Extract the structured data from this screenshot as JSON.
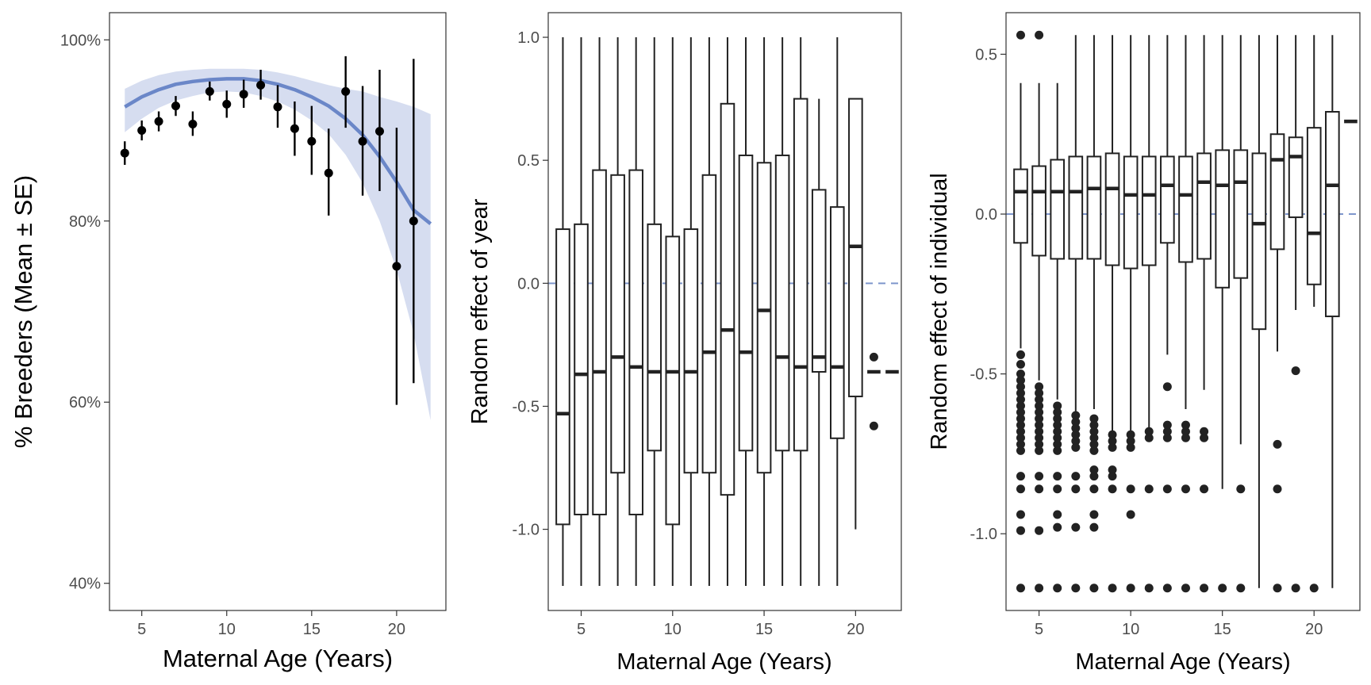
{
  "chart_data": [
    {
      "type": "scatter",
      "xlabel": "Maternal Age (Years)",
      "ylabel": "% Breeders (Mean ± SE)",
      "xlim": [
        3.1,
        22.9
      ],
      "ylim": [
        0.37,
        1.03
      ],
      "xticks": [
        5,
        10,
        15,
        20
      ],
      "xtick_labels": [
        "5",
        "10",
        "15",
        "20"
      ],
      "yticks": [
        0.4,
        0.6,
        0.8,
        1.0
      ],
      "ytick_labels": [
        "40%",
        "60%",
        "80%",
        "100%"
      ],
      "grid": false,
      "colors": {
        "points": "#000000",
        "fit_line": "#6b87c8",
        "ribbon": "#d6ddf0"
      },
      "points": [
        {
          "x": 4,
          "mean": 0.875,
          "lo": 0.862,
          "hi": 0.888
        },
        {
          "x": 5,
          "mean": 0.9,
          "lo": 0.889,
          "hi": 0.911
        },
        {
          "x": 6,
          "mean": 0.91,
          "lo": 0.899,
          "hi": 0.921
        },
        {
          "x": 7,
          "mean": 0.927,
          "lo": 0.916,
          "hi": 0.938
        },
        {
          "x": 8,
          "mean": 0.907,
          "lo": 0.894,
          "hi": 0.921
        },
        {
          "x": 9,
          "mean": 0.943,
          "lo": 0.933,
          "hi": 0.954
        },
        {
          "x": 10,
          "mean": 0.929,
          "lo": 0.914,
          "hi": 0.944
        },
        {
          "x": 11,
          "mean": 0.94,
          "lo": 0.925,
          "hi": 0.956
        },
        {
          "x": 12,
          "mean": 0.95,
          "lo": 0.934,
          "hi": 0.967
        },
        {
          "x": 13,
          "mean": 0.926,
          "lo": 0.903,
          "hi": 0.95
        },
        {
          "x": 14,
          "mean": 0.902,
          "lo": 0.872,
          "hi": 0.932
        },
        {
          "x": 15,
          "mean": 0.888,
          "lo": 0.851,
          "hi": 0.927
        },
        {
          "x": 16,
          "mean": 0.853,
          "lo": 0.806,
          "hi": 0.902
        },
        {
          "x": 17,
          "mean": 0.943,
          "lo": 0.903,
          "hi": 0.982
        },
        {
          "x": 18,
          "mean": 0.888,
          "lo": 0.828,
          "hi": 0.949
        },
        {
          "x": 19,
          "mean": 0.899,
          "lo": 0.833,
          "hi": 0.967
        },
        {
          "x": 20,
          "mean": 0.75,
          "lo": 0.597,
          "hi": 0.903
        },
        {
          "x": 21,
          "mean": 0.8,
          "lo": 0.621,
          "hi": 0.979
        }
      ],
      "fit": {
        "x": [
          4,
          5,
          6,
          7,
          8,
          9,
          10,
          11,
          12,
          13,
          14,
          15,
          16,
          17,
          18,
          19,
          20,
          21,
          22
        ],
        "y": [
          0.926,
          0.937,
          0.945,
          0.951,
          0.954,
          0.956,
          0.957,
          0.957,
          0.955,
          0.951,
          0.945,
          0.937,
          0.927,
          0.913,
          0.895,
          0.871,
          0.843,
          0.812,
          0.797
        ],
        "lo": [
          0.898,
          0.913,
          0.925,
          0.933,
          0.938,
          0.942,
          0.943,
          0.942,
          0.938,
          0.932,
          0.923,
          0.911,
          0.896,
          0.873,
          0.842,
          0.8,
          0.746,
          0.676,
          0.58
        ],
        "hi": [
          0.946,
          0.955,
          0.961,
          0.965,
          0.967,
          0.968,
          0.968,
          0.968,
          0.967,
          0.964,
          0.96,
          0.955,
          0.95,
          0.946,
          0.943,
          0.937,
          0.932,
          0.926,
          0.918
        ]
      }
    },
    {
      "type": "boxplot",
      "xlabel": "Maternal Age (Years)",
      "ylabel": "Random effect of year",
      "xlim": [
        3.2,
        22.5
      ],
      "ylim": [
        -1.33,
        1.1
      ],
      "xticks": [
        5,
        10,
        15,
        20
      ],
      "xtick_labels": [
        "5",
        "10",
        "15",
        "20"
      ],
      "yticks": [
        -1.0,
        -0.5,
        0.0,
        0.5,
        1.0
      ],
      "ytick_labels": [
        "-1.0",
        "-0.5",
        "0.0",
        "0.5",
        "1.0"
      ],
      "reference_line": {
        "y": 0,
        "style": "dashed",
        "color": "#7e96cc"
      },
      "grid": false,
      "boxes": [
        {
          "x": 4,
          "min": -1.23,
          "q1": -0.98,
          "median": -0.53,
          "q3": 0.22,
          "max": 1.0
        },
        {
          "x": 5,
          "min": -1.23,
          "q1": -0.94,
          "median": -0.37,
          "q3": 0.24,
          "max": 1.0
        },
        {
          "x": 6,
          "min": -1.23,
          "q1": -0.94,
          "median": -0.36,
          "q3": 0.46,
          "max": 1.0
        },
        {
          "x": 7,
          "min": -1.23,
          "q1": -0.77,
          "median": -0.3,
          "q3": 0.44,
          "max": 1.0
        },
        {
          "x": 8,
          "min": -1.23,
          "q1": -0.94,
          "median": -0.34,
          "q3": 0.46,
          "max": 1.0
        },
        {
          "x": 9,
          "min": -1.23,
          "q1": -0.68,
          "median": -0.36,
          "q3": 0.24,
          "max": 1.0
        },
        {
          "x": 10,
          "min": -1.23,
          "q1": -0.98,
          "median": -0.36,
          "q3": 0.19,
          "max": 1.0
        },
        {
          "x": 11,
          "min": -1.23,
          "q1": -0.77,
          "median": -0.36,
          "q3": 0.22,
          "max": 1.0
        },
        {
          "x": 12,
          "min": -1.23,
          "q1": -0.77,
          "median": -0.28,
          "q3": 0.44,
          "max": 1.0
        },
        {
          "x": 13,
          "min": -1.23,
          "q1": -0.86,
          "median": -0.19,
          "q3": 0.73,
          "max": 1.0
        },
        {
          "x": 14,
          "min": -1.23,
          "q1": -0.68,
          "median": -0.28,
          "q3": 0.52,
          "max": 1.0
        },
        {
          "x": 15,
          "min": -1.23,
          "q1": -0.77,
          "median": -0.11,
          "q3": 0.49,
          "max": 1.0
        },
        {
          "x": 16,
          "min": -1.23,
          "q1": -0.68,
          "median": -0.3,
          "q3": 0.52,
          "max": 1.0
        },
        {
          "x": 17,
          "min": -1.23,
          "q1": -0.68,
          "median": -0.34,
          "q3": 0.75,
          "max": 1.0
        },
        {
          "x": 18,
          "min": -1.23,
          "q1": -0.36,
          "median": -0.3,
          "q3": 0.38,
          "max": 0.75
        },
        {
          "x": 19,
          "min": -1.23,
          "q1": -0.63,
          "median": -0.34,
          "q3": 0.31,
          "max": 1.0
        },
        {
          "x": 20,
          "min": -1.0,
          "q1": -0.46,
          "median": 0.15,
          "q3": 0.75,
          "max": 0.75
        },
        {
          "x": 21,
          "min": -0.36,
          "q1": -0.36,
          "median": -0.36,
          "q3": -0.36,
          "max": -0.36
        },
        {
          "x": 22,
          "min": -0.36,
          "q1": -0.36,
          "median": -0.36,
          "q3": -0.36,
          "max": -0.36
        }
      ],
      "outliers": [
        {
          "x": 21,
          "y": -0.3
        },
        {
          "x": 21,
          "y": -0.58
        }
      ]
    },
    {
      "type": "boxplot",
      "xlabel": "Maternal Age (Years)",
      "ylabel": "Random effect of individual",
      "xlim": [
        3.2,
        22.5
      ],
      "ylim": [
        -1.24,
        0.63
      ],
      "xticks": [
        5,
        10,
        15,
        20
      ],
      "xtick_labels": [
        "5",
        "10",
        "15",
        "20"
      ],
      "yticks": [
        -1.0,
        -0.5,
        0.0,
        0.5
      ],
      "ytick_labels": [
        "-1.0",
        "-0.5",
        "0.0",
        "0.5"
      ],
      "reference_line": {
        "y": 0,
        "style": "dashed",
        "color": "#7e96cc"
      },
      "grid": false,
      "boxes": [
        {
          "x": 4,
          "min": -0.42,
          "q1": -0.09,
          "median": 0.07,
          "q3": 0.14,
          "max": 0.41
        },
        {
          "x": 5,
          "min": -0.52,
          "q1": -0.13,
          "median": 0.07,
          "q3": 0.15,
          "max": 0.41
        },
        {
          "x": 6,
          "min": -0.58,
          "q1": -0.14,
          "median": 0.07,
          "q3": 0.17,
          "max": 0.41
        },
        {
          "x": 7,
          "min": -0.62,
          "q1": -0.14,
          "median": 0.07,
          "q3": 0.18,
          "max": 0.56
        },
        {
          "x": 8,
          "min": -0.61,
          "q1": -0.14,
          "median": 0.08,
          "q3": 0.18,
          "max": 0.56
        },
        {
          "x": 9,
          "min": -0.68,
          "q1": -0.16,
          "median": 0.08,
          "q3": 0.19,
          "max": 0.56
        },
        {
          "x": 10,
          "min": -0.68,
          "q1": -0.17,
          "median": 0.06,
          "q3": 0.18,
          "max": 0.56
        },
        {
          "x": 11,
          "min": -0.68,
          "q1": -0.16,
          "median": 0.06,
          "q3": 0.18,
          "max": 0.56
        },
        {
          "x": 12,
          "min": -0.44,
          "q1": -0.09,
          "median": 0.09,
          "q3": 0.18,
          "max": 0.56
        },
        {
          "x": 13,
          "min": -0.61,
          "q1": -0.15,
          "median": 0.06,
          "q3": 0.18,
          "max": 0.56
        },
        {
          "x": 14,
          "min": -0.55,
          "q1": -0.14,
          "median": 0.1,
          "q3": 0.19,
          "max": 0.56
        },
        {
          "x": 15,
          "min": -0.86,
          "q1": -0.23,
          "median": 0.09,
          "q3": 0.2,
          "max": 0.56
        },
        {
          "x": 16,
          "min": -0.72,
          "q1": -0.2,
          "median": 0.1,
          "q3": 0.2,
          "max": 0.56
        },
        {
          "x": 17,
          "min": -1.17,
          "q1": -0.36,
          "median": -0.03,
          "q3": 0.19,
          "max": 0.56
        },
        {
          "x": 18,
          "min": -0.43,
          "q1": -0.11,
          "median": 0.17,
          "q3": 0.25,
          "max": 0.56
        },
        {
          "x": 19,
          "min": -0.3,
          "q1": -0.01,
          "median": 0.18,
          "q3": 0.24,
          "max": 0.56
        },
        {
          "x": 20,
          "min": -0.29,
          "q1": -0.22,
          "median": -0.06,
          "q3": 0.27,
          "max": 0.56
        },
        {
          "x": 21,
          "min": -1.17,
          "q1": -0.32,
          "median": 0.09,
          "q3": 0.32,
          "max": 0.56
        },
        {
          "x": 22,
          "min": 0.29,
          "q1": 0.29,
          "median": 0.29,
          "q3": 0.29,
          "max": 0.29
        }
      ],
      "outliers": [
        {
          "x": 4,
          "y": 0.56
        },
        {
          "x": 5,
          "y": 0.56
        },
        {
          "x": 4,
          "y": -0.44
        },
        {
          "x": 4,
          "y": -0.47
        },
        {
          "x": 4,
          "y": -0.5
        },
        {
          "x": 4,
          "y": -0.52
        },
        {
          "x": 4,
          "y": -0.54
        },
        {
          "x": 4,
          "y": -0.56
        },
        {
          "x": 4,
          "y": -0.58
        },
        {
          "x": 4,
          "y": -0.6
        },
        {
          "x": 4,
          "y": -0.62
        },
        {
          "x": 4,
          "y": -0.64
        },
        {
          "x": 4,
          "y": -0.66
        },
        {
          "x": 4,
          "y": -0.68
        },
        {
          "x": 4,
          "y": -0.7
        },
        {
          "x": 4,
          "y": -0.72
        },
        {
          "x": 4,
          "y": -0.74
        },
        {
          "x": 4,
          "y": -0.82
        },
        {
          "x": 4,
          "y": -0.86
        },
        {
          "x": 4,
          "y": -0.94
        },
        {
          "x": 4,
          "y": -0.99
        },
        {
          "x": 4,
          "y": -1.17
        },
        {
          "x": 5,
          "y": -0.54
        },
        {
          "x": 5,
          "y": -0.56
        },
        {
          "x": 5,
          "y": -0.58
        },
        {
          "x": 5,
          "y": -0.6
        },
        {
          "x": 5,
          "y": -0.62
        },
        {
          "x": 5,
          "y": -0.64
        },
        {
          "x": 5,
          "y": -0.66
        },
        {
          "x": 5,
          "y": -0.68
        },
        {
          "x": 5,
          "y": -0.7
        },
        {
          "x": 5,
          "y": -0.72
        },
        {
          "x": 5,
          "y": -0.74
        },
        {
          "x": 5,
          "y": -0.82
        },
        {
          "x": 5,
          "y": -0.86
        },
        {
          "x": 5,
          "y": -0.99
        },
        {
          "x": 5,
          "y": -1.17
        },
        {
          "x": 6,
          "y": -0.6
        },
        {
          "x": 6,
          "y": -0.62
        },
        {
          "x": 6,
          "y": -0.64
        },
        {
          "x": 6,
          "y": -0.66
        },
        {
          "x": 6,
          "y": -0.68
        },
        {
          "x": 6,
          "y": -0.7
        },
        {
          "x": 6,
          "y": -0.72
        },
        {
          "x": 6,
          "y": -0.74
        },
        {
          "x": 6,
          "y": -0.82
        },
        {
          "x": 6,
          "y": -0.86
        },
        {
          "x": 6,
          "y": -0.94
        },
        {
          "x": 6,
          "y": -0.98
        },
        {
          "x": 6,
          "y": -1.17
        },
        {
          "x": 7,
          "y": -0.63
        },
        {
          "x": 7,
          "y": -0.65
        },
        {
          "x": 7,
          "y": -0.67
        },
        {
          "x": 7,
          "y": -0.69
        },
        {
          "x": 7,
          "y": -0.71
        },
        {
          "x": 7,
          "y": -0.73
        },
        {
          "x": 7,
          "y": -0.82
        },
        {
          "x": 7,
          "y": -0.86
        },
        {
          "x": 7,
          "y": -0.98
        },
        {
          "x": 7,
          "y": -1.17
        },
        {
          "x": 8,
          "y": -0.64
        },
        {
          "x": 8,
          "y": -0.66
        },
        {
          "x": 8,
          "y": -0.68
        },
        {
          "x": 8,
          "y": -0.7
        },
        {
          "x": 8,
          "y": -0.72
        },
        {
          "x": 8,
          "y": -0.74
        },
        {
          "x": 8,
          "y": -0.8
        },
        {
          "x": 8,
          "y": -0.82
        },
        {
          "x": 8,
          "y": -0.86
        },
        {
          "x": 8,
          "y": -0.94
        },
        {
          "x": 8,
          "y": -0.98
        },
        {
          "x": 8,
          "y": -1.17
        },
        {
          "x": 9,
          "y": -0.69
        },
        {
          "x": 9,
          "y": -0.71
        },
        {
          "x": 9,
          "y": -0.73
        },
        {
          "x": 9,
          "y": -0.8
        },
        {
          "x": 9,
          "y": -0.82
        },
        {
          "x": 9,
          "y": -0.86
        },
        {
          "x": 9,
          "y": -1.17
        },
        {
          "x": 10,
          "y": -0.69
        },
        {
          "x": 10,
          "y": -0.71
        },
        {
          "x": 10,
          "y": -0.73
        },
        {
          "x": 10,
          "y": -0.86
        },
        {
          "x": 10,
          "y": -0.94
        },
        {
          "x": 10,
          "y": -1.17
        },
        {
          "x": 11,
          "y": -0.68
        },
        {
          "x": 11,
          "y": -0.7
        },
        {
          "x": 11,
          "y": -0.86
        },
        {
          "x": 11,
          "y": -1.17
        },
        {
          "x": 12,
          "y": -0.54
        },
        {
          "x": 12,
          "y": -0.66
        },
        {
          "x": 12,
          "y": -0.68
        },
        {
          "x": 12,
          "y": -0.7
        },
        {
          "x": 12,
          "y": -0.86
        },
        {
          "x": 12,
          "y": -1.17
        },
        {
          "x": 13,
          "y": -0.66
        },
        {
          "x": 13,
          "y": -0.68
        },
        {
          "x": 13,
          "y": -0.7
        },
        {
          "x": 13,
          "y": -0.86
        },
        {
          "x": 13,
          "y": -1.17
        },
        {
          "x": 14,
          "y": -0.68
        },
        {
          "x": 14,
          "y": -0.7
        },
        {
          "x": 14,
          "y": -0.86
        },
        {
          "x": 14,
          "y": -1.17
        },
        {
          "x": 15,
          "y": -1.17
        },
        {
          "x": 16,
          "y": -0.86
        },
        {
          "x": 16,
          "y": -1.17
        },
        {
          "x": 18,
          "y": -0.72
        },
        {
          "x": 18,
          "y": -0.86
        },
        {
          "x": 18,
          "y": -1.17
        },
        {
          "x": 19,
          "y": -0.49
        },
        {
          "x": 19,
          "y": -1.17
        },
        {
          "x": 20,
          "y": -1.17
        }
      ]
    }
  ]
}
